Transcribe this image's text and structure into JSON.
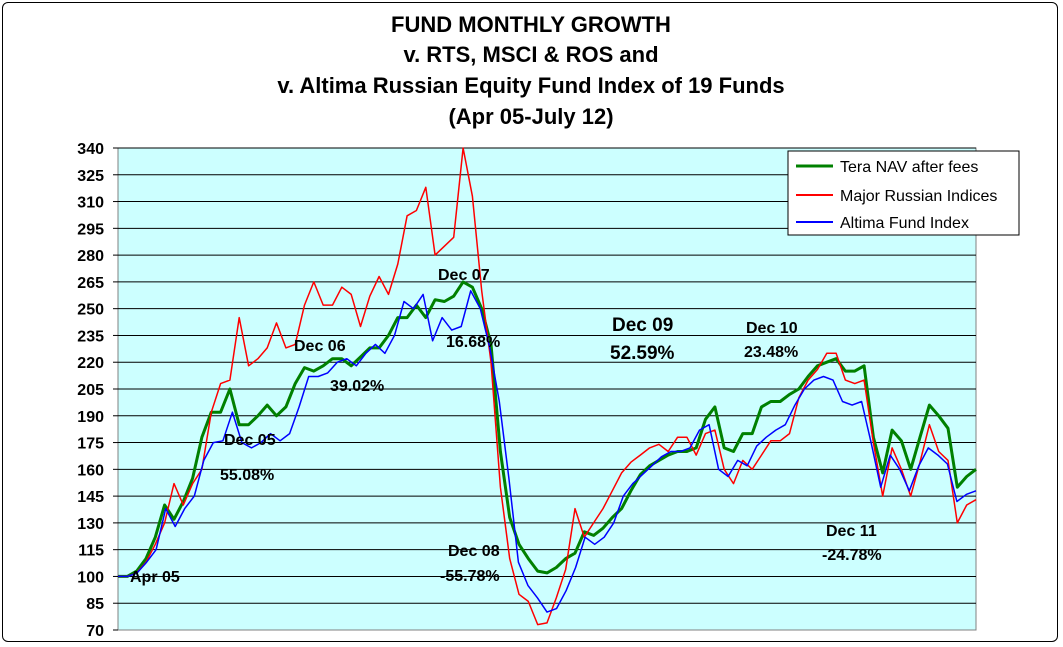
{
  "chart_data": {
    "type": "line",
    "title": [
      "FUND MONTHLY GROWTH",
      "v. RTS, MSCI & ROS and",
      "v. Altima Russian Equity Fund Index of 19 Funds",
      "(Apr 05-July 12)"
    ],
    "xlabel": "",
    "ylabel": "",
    "ylim": [
      70,
      340
    ],
    "yticks": [
      340,
      325,
      310,
      295,
      280,
      265,
      250,
      235,
      220,
      205,
      190,
      175,
      160,
      145,
      130,
      115,
      100,
      85,
      70
    ],
    "grid": true,
    "legend_position": "top-right",
    "plot_background": "#ccffff",
    "series": [
      {
        "name": "Tera NAV after fees",
        "color": "#008000",
        "values": [
          100,
          100,
          103,
          110,
          122,
          140,
          132,
          142,
          155,
          178,
          192,
          192,
          205,
          185,
          185,
          190,
          196,
          190,
          195,
          208,
          217,
          215,
          218,
          222,
          222,
          218,
          223,
          228,
          228,
          235,
          245,
          245,
          252,
          245,
          255,
          254,
          257,
          265,
          262,
          250,
          230,
          170,
          133,
          118,
          110,
          103,
          102,
          105,
          110,
          113,
          125,
          123,
          127,
          133,
          138,
          148,
          157,
          162,
          165,
          168,
          170,
          170,
          172,
          188,
          195,
          172,
          170,
          180,
          180,
          195,
          198,
          198,
          202,
          205,
          212,
          218,
          220,
          222,
          215,
          215,
          218,
          178,
          158,
          182,
          176,
          160,
          178,
          196,
          190,
          183,
          150,
          156,
          160
        ]
      },
      {
        "name": "Major Russian Indices",
        "color": "#ff0000",
        "values": [
          100,
          100,
          102,
          108,
          118,
          130,
          152,
          140,
          152,
          160,
          192,
          208,
          210,
          245,
          218,
          222,
          228,
          242,
          228,
          230,
          252,
          265,
          252,
          252,
          262,
          258,
          240,
          257,
          268,
          258,
          275,
          302,
          305,
          318,
          280,
          285,
          290,
          340,
          313,
          260,
          220,
          150,
          110,
          90,
          86,
          73,
          74,
          88,
          104,
          138,
          122,
          130,
          138,
          148,
          158,
          164,
          168,
          172,
          174,
          170,
          178,
          178,
          168,
          180,
          182,
          160,
          152,
          165,
          160,
          168,
          176,
          176,
          180,
          200,
          210,
          216,
          225,
          225,
          210,
          208,
          210,
          175,
          145,
          172,
          160,
          145,
          164,
          185,
          170,
          165,
          130,
          140,
          143
        ]
      },
      {
        "name": "Altima Fund Index",
        "color": "#0000ff",
        "values": [
          100,
          100,
          102,
          108,
          115,
          138,
          128,
          138,
          145,
          165,
          175,
          176,
          192,
          175,
          172,
          175,
          180,
          176,
          180,
          195,
          212,
          212,
          214,
          220,
          222,
          218,
          225,
          230,
          225,
          235,
          254,
          250,
          258,
          232,
          245,
          238,
          240,
          260,
          250,
          228,
          198,
          155,
          108,
          95,
          88,
          80,
          82,
          92,
          105,
          122,
          118,
          122,
          130,
          145,
          152,
          157,
          162,
          167,
          170,
          170,
          172,
          182,
          185,
          160,
          156,
          165,
          162,
          173,
          178,
          182,
          185,
          196,
          205,
          210,
          212,
          210,
          198,
          196,
          198,
          175,
          150,
          168,
          160,
          148,
          162,
          172,
          168,
          163,
          142,
          146,
          148
        ]
      }
    ],
    "annotations": [
      {
        "text": "Apr 05"
      },
      {
        "text": "Dec 05"
      },
      {
        "text": "55.08%"
      },
      {
        "text": "Dec 06"
      },
      {
        "text": "39.02%"
      },
      {
        "text": "Dec 07"
      },
      {
        "text": "16.68%"
      },
      {
        "text": "Dec 08"
      },
      {
        "text": "-55.78%"
      },
      {
        "text": "Dec 09"
      },
      {
        "text": "52.59%"
      },
      {
        "text": "Dec 10"
      },
      {
        "text": "23.48%"
      },
      {
        "text": "Dec 11"
      },
      {
        "text": "-24.78%"
      }
    ]
  }
}
